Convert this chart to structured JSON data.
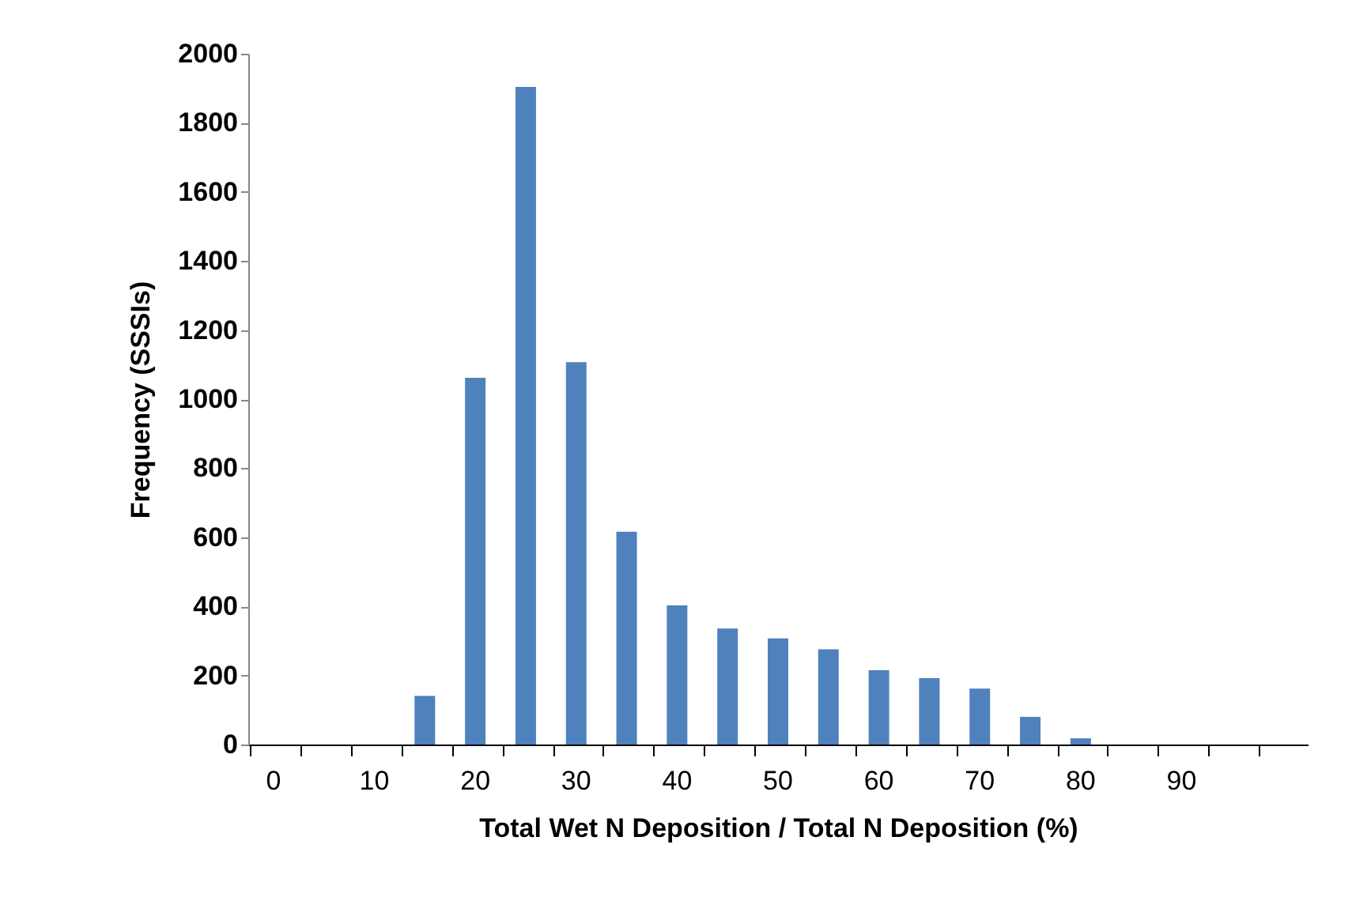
{
  "chart_data": {
    "type": "bar",
    "xlabel": "Total Wet N Deposition / Total N Deposition (%)",
    "ylabel": "Frequency (SSSIs)",
    "categories": [
      "0",
      null,
      "10",
      null,
      "20",
      null,
      "30",
      null,
      "40",
      null,
      "50",
      null,
      "60",
      null,
      "70",
      null,
      "80",
      null,
      "90",
      null,
      null
    ],
    "values": [
      0,
      0,
      0,
      141,
      1062,
      1904,
      1107,
      616,
      403,
      336,
      307,
      276,
      215,
      192,
      162,
      80,
      18,
      0,
      0,
      0,
      0
    ],
    "color": "#4f81bd",
    "ylim": [
      0,
      2000
    ],
    "yticks": [
      0,
      200,
      400,
      600,
      800,
      1000,
      1200,
      1400,
      1600,
      1800,
      2000
    ],
    "grid": false
  }
}
